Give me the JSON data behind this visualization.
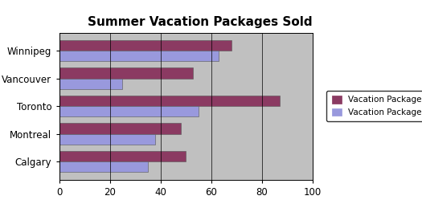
{
  "title": "Summer Vacation Packages Sold",
  "categories": [
    "Calgary",
    "Montreal",
    "Toronto",
    "Vancouver",
    "Winnipeg"
  ],
  "package_b": [
    50,
    48,
    87,
    53,
    68
  ],
  "package_a": [
    35,
    38,
    55,
    25,
    63
  ],
  "color_b": "#8B3A62",
  "color_a": "#9999DD",
  "legend_b": "Vacation Package B",
  "legend_a": "Vacation Package A",
  "xlim": [
    0,
    100
  ],
  "xticks": [
    0,
    20,
    40,
    60,
    80,
    100
  ],
  "plot_bg_color": "#C0C0C0",
  "fig_bg": "#FFFFFF",
  "title_fontsize": 11,
  "label_fontsize": 8.5,
  "tick_fontsize": 8.5,
  "bar_height": 0.38
}
